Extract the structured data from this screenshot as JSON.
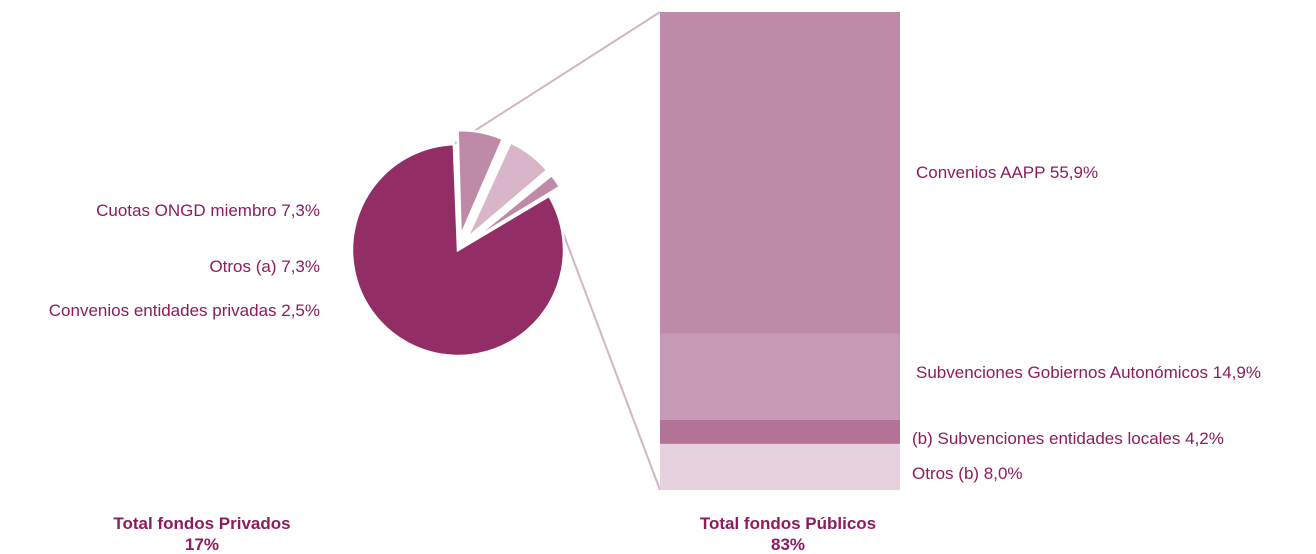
{
  "chart_data": {
    "type": "bar-of-pie",
    "pie": {
      "total_label": "Total fondos Privados",
      "total_value": "17%",
      "slices": [
        {
          "name": "Total fondos Públicos",
          "value": 83,
          "label": "",
          "color": "#932d65",
          "exploded": false
        },
        {
          "name": "Cuotas ONGD miembro",
          "value": 7.3,
          "label": "Cuotas ONGD miembro 7,3%",
          "color": "#bf8aa8",
          "exploded": true
        },
        {
          "name": "Otros (a)",
          "value": 7.3,
          "label": "Otros (a) 7,3%",
          "color": "#d8b5c8",
          "exploded": true
        },
        {
          "name": "Convenios entidades privadas",
          "value": 2.5,
          "label": "Convenios entidades privadas 2,5%",
          "color": "#bf8aa8",
          "exploded": true
        }
      ]
    },
    "bar": {
      "total_label": "Total fondos Públicos",
      "total_value": "83%",
      "segments": [
        {
          "name": "Convenios AAPP",
          "value": 55.9,
          "label": "Convenios AAPP 55,9%",
          "color": "#bf8aa8"
        },
        {
          "name": "Subvenciones Gobiernos Autonómicos",
          "value": 14.9,
          "label": "Subvenciones Gobiernos Autonómicos 14,9%",
          "color": "#c69ab5"
        },
        {
          "name": "Subvenciones entidades locales",
          "value": 4.2,
          "label": "(b) Subvenciones entidades locales 4,2%",
          "color": "#b27396"
        },
        {
          "name": "Otros (b)",
          "value": 8.0,
          "label": "Otros (b) 8,0%",
          "color": "#e6d2de"
        }
      ]
    },
    "connector_color": "#d4b3c5",
    "text_color": "#8e1b5e"
  }
}
